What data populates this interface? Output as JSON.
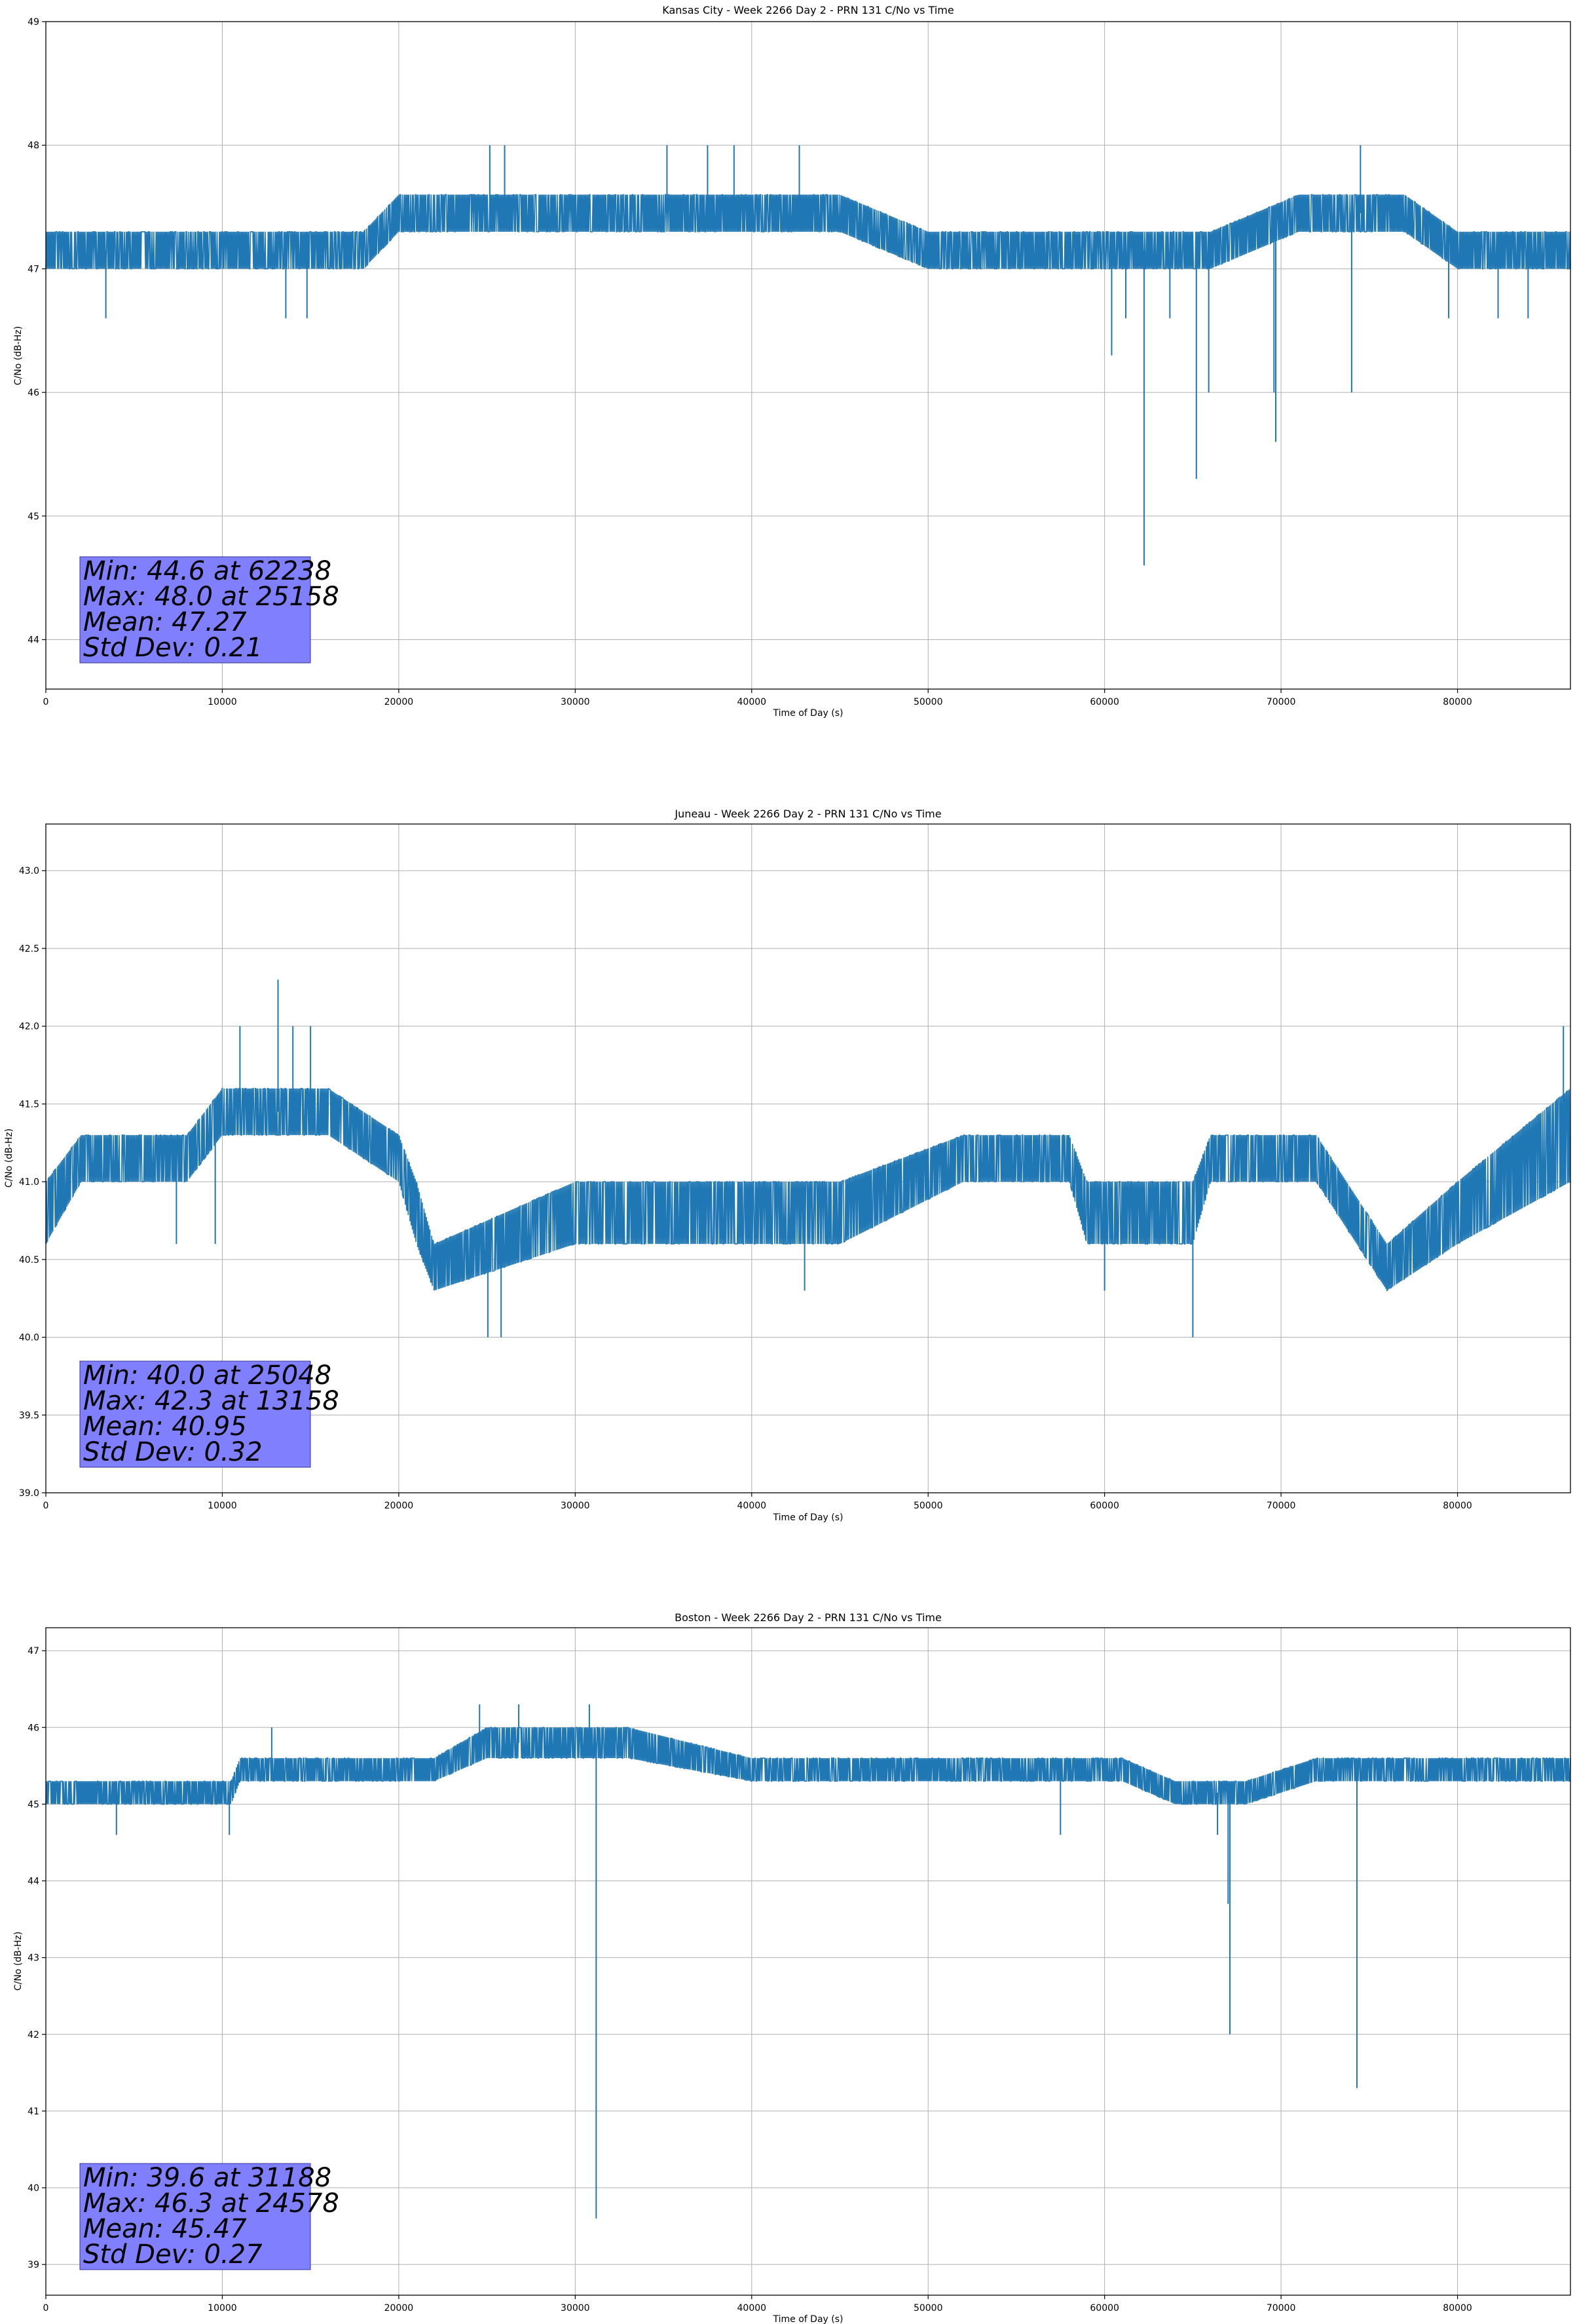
{
  "chart_data": [
    {
      "type": "line",
      "title": "Kansas City - Week 2266 Day 2 - PRN 131 C/No vs Time",
      "xlabel": "Time of Day (s)",
      "ylabel": "C/No (dB-Hz)",
      "xlim": [
        0,
        86400
      ],
      "ylim": [
        43.6,
        49
      ],
      "xticks": [
        0,
        10000,
        20000,
        30000,
        40000,
        50000,
        60000,
        70000,
        80000
      ],
      "yticks": [
        44,
        45,
        46,
        47,
        48,
        49
      ],
      "grid": true,
      "series": [
        {
          "color": "#1f77b4",
          "band": {
            "x": [
              0,
              10000,
              18000,
              20000,
              25000,
              35000,
              45000,
              50000,
              55000,
              60000,
              66000,
              71000,
              77000,
              80000,
              86400
            ],
            "low": [
              47.0,
              47.0,
              47.0,
              47.3,
              47.3,
              47.3,
              47.3,
              47.0,
              47.0,
              47.0,
              47.0,
              47.3,
              47.3,
              47.0,
              47.0
            ],
            "high": [
              47.3,
              47.3,
              47.3,
              47.6,
              47.6,
              47.6,
              47.6,
              47.3,
              47.3,
              47.3,
              47.3,
              47.6,
              47.6,
              47.3,
              47.3
            ]
          },
          "spikes": [
            [
              3400,
              46.6
            ],
            [
              13600,
              46.6
            ],
            [
              14800,
              46.6
            ],
            [
              25158,
              48.0
            ],
            [
              26000,
              48.0
            ],
            [
              35200,
              48.0
            ],
            [
              37500,
              48.0
            ],
            [
              39000,
              48.0
            ],
            [
              42700,
              48.0
            ],
            [
              60400,
              46.3
            ],
            [
              61200,
              46.6
            ],
            [
              62238,
              44.6
            ],
            [
              63700,
              46.6
            ],
            [
              65200,
              45.3
            ],
            [
              65900,
              46.0
            ],
            [
              69600,
              46.0
            ],
            [
              69700,
              45.6
            ],
            [
              74000,
              46.0
            ],
            [
              74500,
              48.0
            ],
            [
              79500,
              46.6
            ],
            [
              82300,
              46.6
            ],
            [
              84000,
              46.6
            ]
          ]
        }
      ],
      "stats": {
        "min": "Min: 44.6 at 62238",
        "max": "Max: 48.0 at 25158",
        "mean": "Mean: 47.27",
        "std": "Std Dev: 0.21"
      }
    },
    {
      "type": "line",
      "title": "Juneau - Week 2266 Day 2 - PRN 131 C/No vs Time",
      "xlabel": "Time of Day (s)",
      "ylabel": "C/No (dB-Hz)",
      "xlim": [
        0,
        86400
      ],
      "ylim": [
        39.0,
        43.3
      ],
      "xticks": [
        0,
        10000,
        20000,
        30000,
        40000,
        50000,
        60000,
        70000,
        80000
      ],
      "yticks": [
        39.0,
        39.5,
        40.0,
        40.5,
        41.0,
        41.5,
        42.0,
        42.5,
        43.0
      ],
      "grid": true,
      "series": [
        {
          "color": "#1f77b4",
          "band": {
            "x": [
              0,
              2000,
              8000,
              10000,
              16000,
              20000,
              21000,
              22000,
              30000,
              35000,
              45000,
              52000,
              58000,
              59000,
              65000,
              66000,
              72000,
              76000,
              80000,
              86400
            ],
            "low": [
              40.6,
              41.0,
              41.0,
              41.3,
              41.3,
              41.0,
              40.6,
              40.3,
              40.6,
              40.6,
              40.6,
              41.0,
              41.0,
              40.6,
              40.6,
              41.0,
              41.0,
              40.3,
              40.6,
              41.0
            ],
            "high": [
              41.0,
              41.3,
              41.3,
              41.6,
              41.6,
              41.3,
              41.0,
              40.6,
              41.0,
              41.0,
              41.0,
              41.3,
              41.3,
              41.0,
              41.0,
              41.3,
              41.3,
              40.6,
              41.0,
              41.6
            ]
          },
          "spikes": [
            [
              7400,
              40.6
            ],
            [
              9600,
              40.6
            ],
            [
              11000,
              42.0
            ],
            [
              13158,
              42.3
            ],
            [
              14000,
              42.0
            ],
            [
              15000,
              42.0
            ],
            [
              25048,
              40.0
            ],
            [
              25800,
              40.0
            ],
            [
              43000,
              40.3
            ],
            [
              60000,
              40.3
            ],
            [
              65000,
              40.0
            ],
            [
              86000,
              42.0
            ]
          ]
        }
      ],
      "stats": {
        "min": "Min: 40.0 at 25048",
        "max": "Max: 42.3 at 13158",
        "mean": "Mean: 40.95",
        "std": "Std Dev: 0.32"
      }
    },
    {
      "type": "line",
      "title": "Boston - Week 2266 Day 2 - PRN 131 C/No vs Time",
      "xlabel": "Time of Day (s)",
      "ylabel": "C/No (dB-Hz)",
      "xlim": [
        0,
        86400
      ],
      "ylim": [
        38.6,
        47.3
      ],
      "xticks": [
        0,
        10000,
        20000,
        30000,
        40000,
        50000,
        60000,
        70000,
        80000
      ],
      "yticks": [
        39,
        40,
        41,
        42,
        43,
        44,
        45,
        46,
        47
      ],
      "grid": true,
      "series": [
        {
          "color": "#1f77b4",
          "band": {
            "x": [
              0,
              10500,
              11000,
              22000,
              25000,
              33000,
              40000,
              55000,
              61000,
              64000,
              68000,
              72000,
              86400
            ],
            "low": [
              45.0,
              45.0,
              45.3,
              45.3,
              45.6,
              45.6,
              45.3,
              45.3,
              45.3,
              45.0,
              45.0,
              45.3,
              45.3
            ],
            "high": [
              45.3,
              45.3,
              45.6,
              45.6,
              46.0,
              46.0,
              45.6,
              45.6,
              45.6,
              45.3,
              45.3,
              45.6,
              45.6
            ]
          },
          "spikes": [
            [
              4000,
              44.6
            ],
            [
              10400,
              44.6
            ],
            [
              12800,
              46.0
            ],
            [
              24578,
              46.3
            ],
            [
              26800,
              46.3
            ],
            [
              30800,
              46.3
            ],
            [
              31188,
              39.6
            ],
            [
              57500,
              44.6
            ],
            [
              66400,
              44.6
            ],
            [
              67000,
              43.7
            ],
            [
              67100,
              42.0
            ],
            [
              74300,
              41.3
            ]
          ]
        }
      ],
      "stats": {
        "min": "Min: 39.6 at 31188",
        "max": "Max: 46.3 at 24578",
        "mean": "Mean: 45.47",
        "std": "Std Dev: 0.27"
      }
    }
  ]
}
